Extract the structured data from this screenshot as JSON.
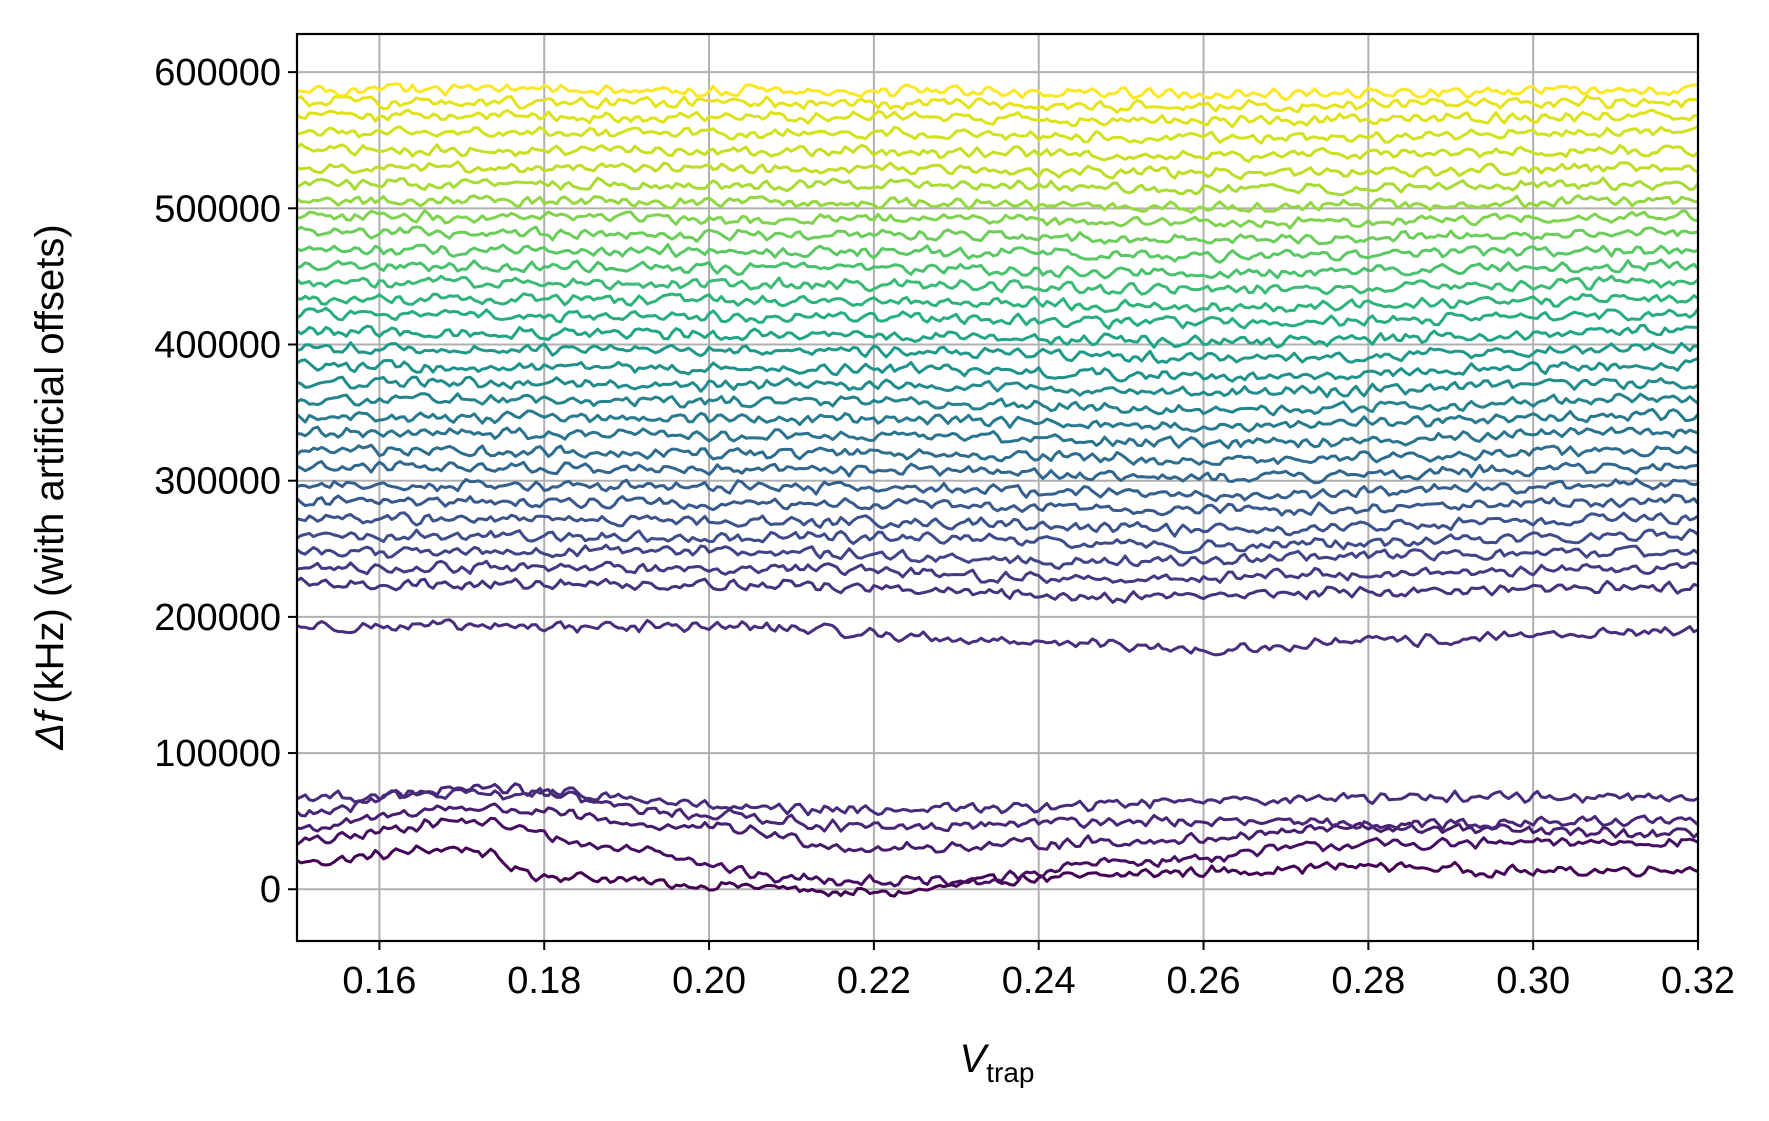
{
  "chart_data": {
    "type": "line",
    "title": "",
    "xlabel": "V",
    "xlabel_sub": "trap",
    "ylabel_delta_f": "Δf",
    "ylabel": "(kHz) (with artificial offsets)",
    "xlim": [
      0.15,
      0.32
    ],
    "ylim": [
      -38000,
      628000
    ],
    "xticks": [
      "0.16",
      "0.18",
      "0.20",
      "0.22",
      "0.24",
      "0.26",
      "0.28",
      "0.30",
      "0.32"
    ],
    "yticks": [
      "0",
      "100000",
      "200000",
      "300000",
      "400000",
      "500000",
      "600000"
    ],
    "grid": true,
    "legend": false,
    "colormap": "viridis",
    "x_range_of_series": [
      0.15,
      0.32
    ],
    "noise_amplitude": 5000,
    "series": [
      {
        "color": "#440154",
        "points": [
          [
            0.15,
            20000
          ],
          [
            0.17,
            30000
          ],
          [
            0.18,
            10000
          ],
          [
            0.2,
            3000
          ],
          [
            0.22,
            -3000
          ],
          [
            0.24,
            8000
          ],
          [
            0.26,
            13000
          ],
          [
            0.28,
            17000
          ],
          [
            0.3,
            13000
          ],
          [
            0.32,
            15000
          ]
        ]
      },
      {
        "color": "#460e63",
        "points": [
          [
            0.15,
            35000
          ],
          [
            0.17,
            50000
          ],
          [
            0.19,
            30000
          ],
          [
            0.21,
            8000
          ],
          [
            0.23,
            5000
          ],
          [
            0.25,
            20000
          ],
          [
            0.28,
            33000
          ],
          [
            0.32,
            35000
          ]
        ]
      },
      {
        "color": "#471d6e",
        "points": [
          [
            0.15,
            45000
          ],
          [
            0.17,
            60000
          ],
          [
            0.2,
            45000
          ],
          [
            0.22,
            30000
          ],
          [
            0.25,
            35000
          ],
          [
            0.28,
            45000
          ],
          [
            0.32,
            40000
          ]
        ]
      },
      {
        "color": "#482576",
        "points": [
          [
            0.15,
            55000
          ],
          [
            0.17,
            75000
          ],
          [
            0.2,
            55000
          ],
          [
            0.22,
            45000
          ],
          [
            0.25,
            50000
          ],
          [
            0.28,
            48000
          ],
          [
            0.32,
            50000
          ]
        ]
      },
      {
        "color": "#482c7c",
        "points": [
          [
            0.15,
            68000
          ],
          [
            0.18,
            70000
          ],
          [
            0.21,
            58000
          ],
          [
            0.24,
            60000
          ],
          [
            0.26,
            66000
          ],
          [
            0.29,
            68000
          ],
          [
            0.32,
            68000
          ]
        ]
      },
      {
        "color": "#472f7d",
        "points": [
          [
            0.15,
            193000
          ],
          [
            0.2,
            193000
          ],
          [
            0.24,
            182000
          ],
          [
            0.26,
            175000
          ],
          [
            0.28,
            182000
          ],
          [
            0.32,
            190000
          ]
        ]
      },
      {
        "color": "#46337e",
        "points": [
          [
            0.15,
            224000
          ],
          [
            0.2,
            224000
          ],
          [
            0.25,
            215000
          ],
          [
            0.28,
            218000
          ],
          [
            0.32,
            222000
          ]
        ]
      },
      {
        "color": "#443a83",
        "points": [
          [
            0.15,
            236000
          ],
          [
            0.2,
            236000
          ],
          [
            0.25,
            228000
          ],
          [
            0.28,
            232000
          ],
          [
            0.32,
            236000
          ]
        ]
      },
      {
        "color": "#414487",
        "points": [
          [
            0.15,
            248000
          ],
          [
            0.2,
            248000
          ],
          [
            0.25,
            240000
          ],
          [
            0.28,
            245000
          ],
          [
            0.32,
            248000
          ]
        ]
      },
      {
        "color": "#3e4c8a",
        "points": [
          [
            0.15,
            260000
          ],
          [
            0.22,
            258000
          ],
          [
            0.26,
            252000
          ],
          [
            0.32,
            260000
          ]
        ]
      },
      {
        "color": "#3b528b",
        "points": [
          [
            0.15,
            272000
          ],
          [
            0.22,
            270000
          ],
          [
            0.26,
            264000
          ],
          [
            0.32,
            272000
          ]
        ]
      },
      {
        "color": "#38598c",
        "points": [
          [
            0.15,
            285000
          ],
          [
            0.22,
            283000
          ],
          [
            0.26,
            278000
          ],
          [
            0.32,
            285000
          ]
        ]
      },
      {
        "color": "#355f8d",
        "points": [
          [
            0.15,
            297000
          ],
          [
            0.22,
            295000
          ],
          [
            0.26,
            290000
          ],
          [
            0.32,
            298000
          ]
        ]
      },
      {
        "color": "#31668e",
        "points": [
          [
            0.15,
            310000
          ],
          [
            0.22,
            308000
          ],
          [
            0.26,
            302000
          ],
          [
            0.32,
            310000
          ]
        ]
      },
      {
        "color": "#2e6d8e",
        "points": [
          [
            0.15,
            322000
          ],
          [
            0.22,
            320000
          ],
          [
            0.26,
            315000
          ],
          [
            0.32,
            323000
          ]
        ]
      },
      {
        "color": "#2b748e",
        "points": [
          [
            0.15,
            335000
          ],
          [
            0.22,
            333000
          ],
          [
            0.26,
            328000
          ],
          [
            0.32,
            336000
          ]
        ]
      },
      {
        "color": "#287a8e",
        "points": [
          [
            0.15,
            347000
          ],
          [
            0.22,
            345000
          ],
          [
            0.26,
            340000
          ],
          [
            0.32,
            348000
          ]
        ]
      },
      {
        "color": "#25838e",
        "points": [
          [
            0.15,
            360000
          ],
          [
            0.22,
            358000
          ],
          [
            0.26,
            352000
          ],
          [
            0.32,
            360000
          ]
        ]
      },
      {
        "color": "#228c8d",
        "points": [
          [
            0.15,
            372000
          ],
          [
            0.22,
            370000
          ],
          [
            0.26,
            365000
          ],
          [
            0.32,
            372000
          ]
        ]
      },
      {
        "color": "#1f938b",
        "points": [
          [
            0.15,
            384000
          ],
          [
            0.22,
            382000
          ],
          [
            0.26,
            377000
          ],
          [
            0.32,
            385000
          ]
        ]
      },
      {
        "color": "#1f9a8a",
        "points": [
          [
            0.15,
            397000
          ],
          [
            0.22,
            395000
          ],
          [
            0.26,
            390000
          ],
          [
            0.32,
            398000
          ]
        ]
      },
      {
        "color": "#21a585",
        "points": [
          [
            0.15,
            409000
          ],
          [
            0.22,
            407000
          ],
          [
            0.26,
            402000
          ],
          [
            0.32,
            410000
          ]
        ]
      },
      {
        "color": "#26ad81",
        "points": [
          [
            0.15,
            422000
          ],
          [
            0.22,
            420000
          ],
          [
            0.26,
            416000
          ],
          [
            0.32,
            422000
          ]
        ]
      },
      {
        "color": "#2eb37c",
        "points": [
          [
            0.15,
            434000
          ],
          [
            0.22,
            432000
          ],
          [
            0.26,
            428000
          ],
          [
            0.32,
            434000
          ]
        ]
      },
      {
        "color": "#3bbb75",
        "points": [
          [
            0.15,
            446000
          ],
          [
            0.22,
            444000
          ],
          [
            0.26,
            440000
          ],
          [
            0.32,
            446000
          ]
        ]
      },
      {
        "color": "#4ac16d",
        "points": [
          [
            0.15,
            458000
          ],
          [
            0.22,
            456000
          ],
          [
            0.26,
            452000
          ],
          [
            0.32,
            458000
          ]
        ]
      },
      {
        "color": "#5ac864",
        "points": [
          [
            0.15,
            470000
          ],
          [
            0.22,
            468000
          ],
          [
            0.26,
            465000
          ],
          [
            0.32,
            470000
          ]
        ]
      },
      {
        "color": "#6ccd5a",
        "points": [
          [
            0.15,
            482000
          ],
          [
            0.22,
            480000
          ],
          [
            0.26,
            477000
          ],
          [
            0.32,
            482000
          ]
        ]
      },
      {
        "color": "#7fd34e",
        "points": [
          [
            0.15,
            494000
          ],
          [
            0.22,
            492000
          ],
          [
            0.26,
            489000
          ],
          [
            0.32,
            494000
          ]
        ]
      },
      {
        "color": "#93d741",
        "points": [
          [
            0.15,
            506000
          ],
          [
            0.22,
            504000
          ],
          [
            0.26,
            501000
          ],
          [
            0.32,
            506000
          ]
        ]
      },
      {
        "color": "#a8db34",
        "points": [
          [
            0.15,
            518000
          ],
          [
            0.22,
            517000
          ],
          [
            0.26,
            514000
          ],
          [
            0.32,
            518000
          ]
        ]
      },
      {
        "color": "#bddf26",
        "points": [
          [
            0.15,
            530000
          ],
          [
            0.22,
            529000
          ],
          [
            0.26,
            526000
          ],
          [
            0.32,
            530000
          ]
        ]
      },
      {
        "color": "#c8e020",
        "points": [
          [
            0.15,
            543000
          ],
          [
            0.22,
            542000
          ],
          [
            0.26,
            539000
          ],
          [
            0.32,
            543000
          ]
        ]
      },
      {
        "color": "#d2e21b",
        "points": [
          [
            0.15,
            556000
          ],
          [
            0.22,
            555000
          ],
          [
            0.26,
            552000
          ],
          [
            0.32,
            556000
          ]
        ]
      },
      {
        "color": "#dde318",
        "points": [
          [
            0.15,
            568000
          ],
          [
            0.22,
            567000
          ],
          [
            0.26,
            564000
          ],
          [
            0.32,
            568000
          ]
        ]
      },
      {
        "color": "#e5e419",
        "points": [
          [
            0.15,
            578000
          ],
          [
            0.22,
            577000
          ],
          [
            0.26,
            575000
          ],
          [
            0.32,
            578000
          ]
        ]
      },
      {
        "color": "#fde725",
        "points": [
          [
            0.15,
            587000
          ],
          [
            0.22,
            586000
          ],
          [
            0.26,
            584000
          ],
          [
            0.32,
            587000
          ]
        ]
      }
    ]
  }
}
